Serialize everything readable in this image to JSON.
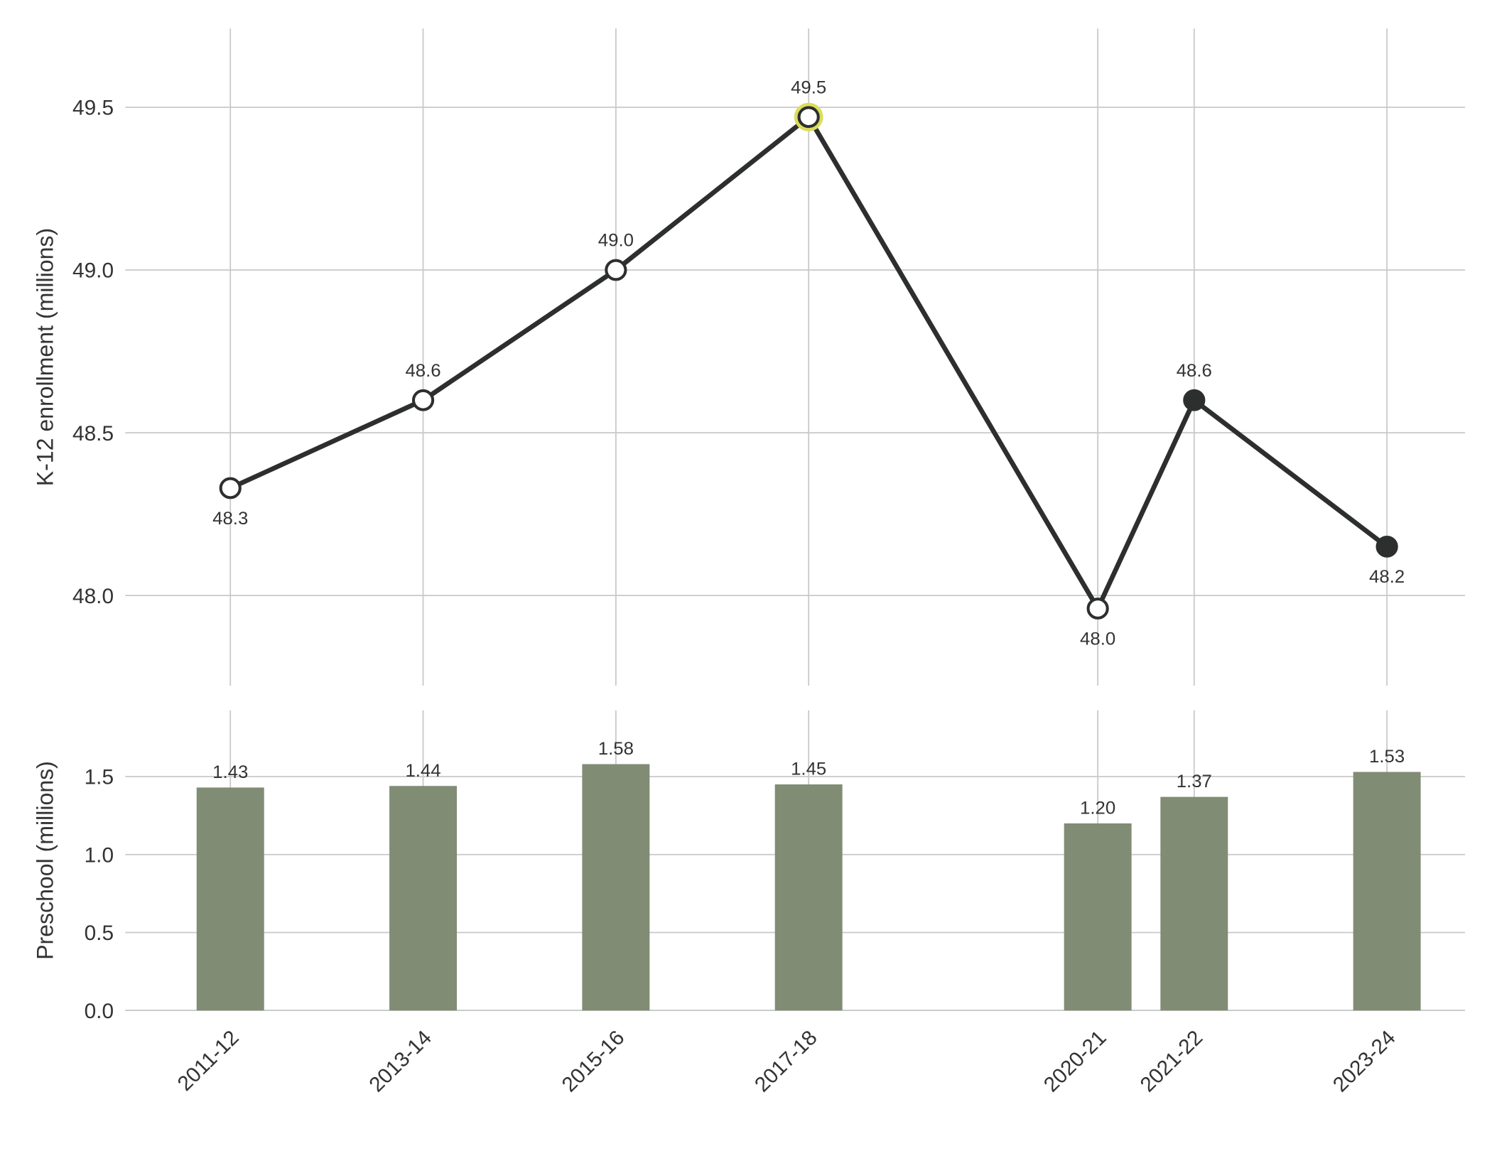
{
  "chart_data": [
    {
      "type": "line",
      "y_label": "K-12 enrollment (millions)",
      "categories": [
        "2011-12",
        "2013-14",
        "2015-16",
        "2017-18",
        "2020-21",
        "2021-22",
        "2023-24"
      ],
      "values": [
        48.33,
        48.6,
        49.0,
        49.47,
        47.96,
        48.6,
        48.15
      ],
      "value_labels": [
        "48.3",
        "48.6",
        "49.0",
        "49.5",
        "48.0",
        "48.6",
        "48.2"
      ],
      "color": "#2d2f2e",
      "marker_colors": [
        "#ffffff",
        "#ffffff",
        "#ffffff",
        "#ffffff",
        "#ffffff",
        "#2d2f2e",
        "#2d2f2e"
      ],
      "highlight_index": 3,
      "highlight_color": "#dcdc5a",
      "ylim": [
        47.723,
        49.742
      ],
      "yticks": [
        {
          "value": 48.0,
          "label": "48.0"
        },
        {
          "value": 48.5,
          "label": "48.5"
        },
        {
          "value": 49.0,
          "label": "49.0"
        },
        {
          "value": 49.5,
          "label": "49.5"
        }
      ],
      "grid": true
    },
    {
      "type": "bar",
      "y_label": "Preschool (millions)",
      "categories": [
        "2011-12",
        "2013-14",
        "2015-16",
        "2017-18",
        "2020-21",
        "2021-22",
        "2023-24"
      ],
      "values": [
        1.43,
        1.44,
        1.58,
        1.45,
        1.2,
        1.37,
        1.53
      ],
      "value_labels": [
        "1.43",
        "1.44",
        "1.58",
        "1.45",
        "1.20",
        "1.37",
        "1.53"
      ],
      "color": "#808c74",
      "ylim": [
        0,
        1.925
      ],
      "yticks": [
        {
          "value": 0,
          "label": "0.0"
        },
        {
          "value": 0.5,
          "label": "0.5"
        },
        {
          "value": 1.0,
          "label": "1.0"
        },
        {
          "value": 1.5,
          "label": "1.5"
        }
      ],
      "grid": true
    }
  ]
}
